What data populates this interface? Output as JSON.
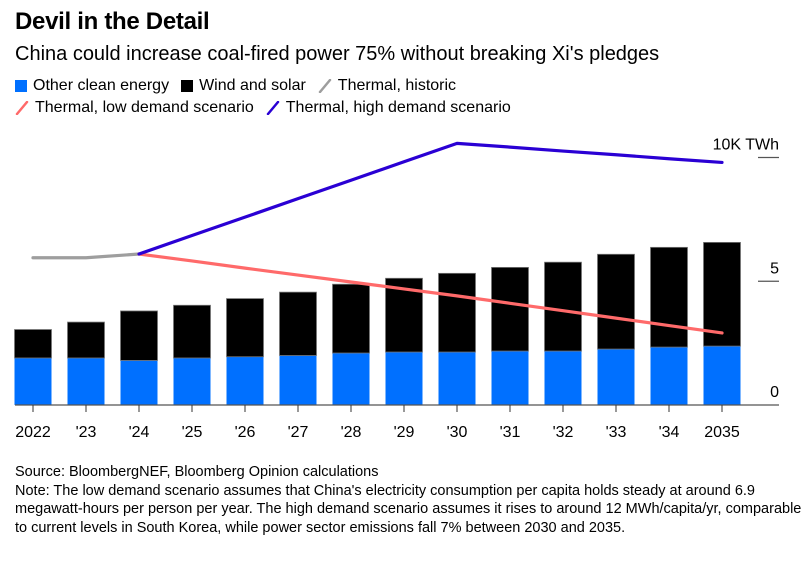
{
  "header": {
    "title": "Devil in the Detail",
    "subtitle": "China could increase coal-fired power 75% without breaking Xi's pledges"
  },
  "legend": [
    {
      "label": "Other clean energy",
      "type": "box",
      "color": "#0070ff"
    },
    {
      "label": "Wind and solar",
      "type": "box",
      "color": "#000000"
    },
    {
      "label": "Thermal, historic",
      "type": "line",
      "color": "#9e9e9e"
    },
    {
      "label": "Thermal, low demand scenario",
      "type": "line",
      "color": "#ff6a6a"
    },
    {
      "label": "Thermal, high demand scenario",
      "type": "line",
      "color": "#2a00d4"
    }
  ],
  "chart_data": {
    "type": "bar",
    "subtype": "stacked bar with line overlays",
    "title": "Devil in the Detail",
    "subtitle": "China could increase coal-fired power 75% without breaking Xi's pledges",
    "unit": "thousand TWh",
    "categories": [
      "2022",
      "'23",
      "'24",
      "'25",
      "'26",
      "'27",
      "'28",
      "'29",
      "'30",
      "'31",
      "'32",
      "'33",
      "'34",
      "2035"
    ],
    "xlabel": "",
    "ylabel": "10K TWh",
    "ylim": [
      0,
      10
    ],
    "yticks": [
      {
        "value": 0,
        "label": "0"
      },
      {
        "value": 5,
        "label": "5"
      },
      {
        "value": 10,
        "label": "10K TWh"
      }
    ],
    "y_axis_side": "right",
    "grid": false,
    "legend_position": "top",
    "series": [
      {
        "name": "Other clean energy",
        "kind": "bar",
        "color": "#0070ff",
        "values": [
          1.9,
          1.9,
          1.8,
          1.9,
          1.95,
          2.0,
          2.1,
          2.14,
          2.14,
          2.18,
          2.18,
          2.26,
          2.34,
          2.38
        ]
      },
      {
        "name": "Wind and solar",
        "kind": "bar",
        "color": "#000000",
        "values": [
          1.15,
          1.45,
          2.0,
          2.13,
          2.35,
          2.56,
          2.78,
          2.98,
          3.18,
          3.38,
          3.59,
          3.83,
          4.03,
          4.19
        ]
      },
      {
        "name": "Thermal, historic",
        "kind": "line",
        "color": "#9e9e9e",
        "values": [
          5.95,
          5.95,
          6.1,
          null,
          null,
          null,
          null,
          null,
          null,
          null,
          null,
          null,
          null,
          null
        ]
      },
      {
        "name": "Thermal, low demand scenario",
        "kind": "line",
        "color": "#ff6a6a",
        "values": [
          null,
          null,
          6.1,
          5.82,
          5.53,
          5.25,
          4.97,
          4.69,
          4.41,
          4.11,
          3.81,
          3.51,
          3.21,
          2.91
        ]
      },
      {
        "name": "Thermal, high demand scenario",
        "kind": "line",
        "color": "#2a00d4",
        "values": [
          null,
          null,
          6.1,
          6.85,
          7.59,
          8.34,
          9.08,
          9.83,
          10.57,
          10.42,
          10.26,
          10.11,
          9.95,
          9.8
        ]
      }
    ]
  },
  "footer": {
    "source": "Source: BloombergNEF, Bloomberg Opinion calculations",
    "note": "Note: The low demand scenario assumes that China's electricity consumption per capita holds steady at around 6.9 megawatt-hours per person per year. The high demand scenario assumes it rises to around 12 MWh/capita/yr, comparable to current levels in South Korea, while power sector emissions fall 7% between 2030 and 2035."
  }
}
